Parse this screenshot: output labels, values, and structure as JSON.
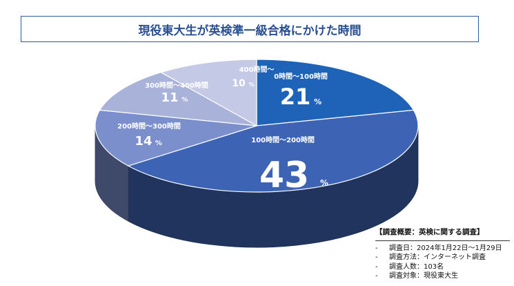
{
  "title": "現役東大生が英検準一級合格にかけた時間",
  "chart_data": {
    "type": "pie",
    "style": "3d",
    "unit": "%",
    "slices": [
      {
        "label": "0時間〜100時間",
        "value": 21,
        "color": "#1e63b8"
      },
      {
        "label": "100時間〜200時間",
        "value": 43,
        "color": "#3d64b4"
      },
      {
        "label": "200時間〜300時間",
        "value": 14,
        "color": "#7a8fcb"
      },
      {
        "label": "300時間〜400時間",
        "value": 11,
        "color": "#a9b3da"
      },
      {
        "label": "400時間〜",
        "value": 10,
        "color": "#c4cae6"
      }
    ]
  },
  "summary": {
    "heading": "【調査概要：英検に関する調査】",
    "items": [
      "調査日：2024年1月22日〜1月29日",
      "調査方法：インターネット調査",
      "調査人数：103名",
      "調査対象：現役東大生"
    ]
  }
}
